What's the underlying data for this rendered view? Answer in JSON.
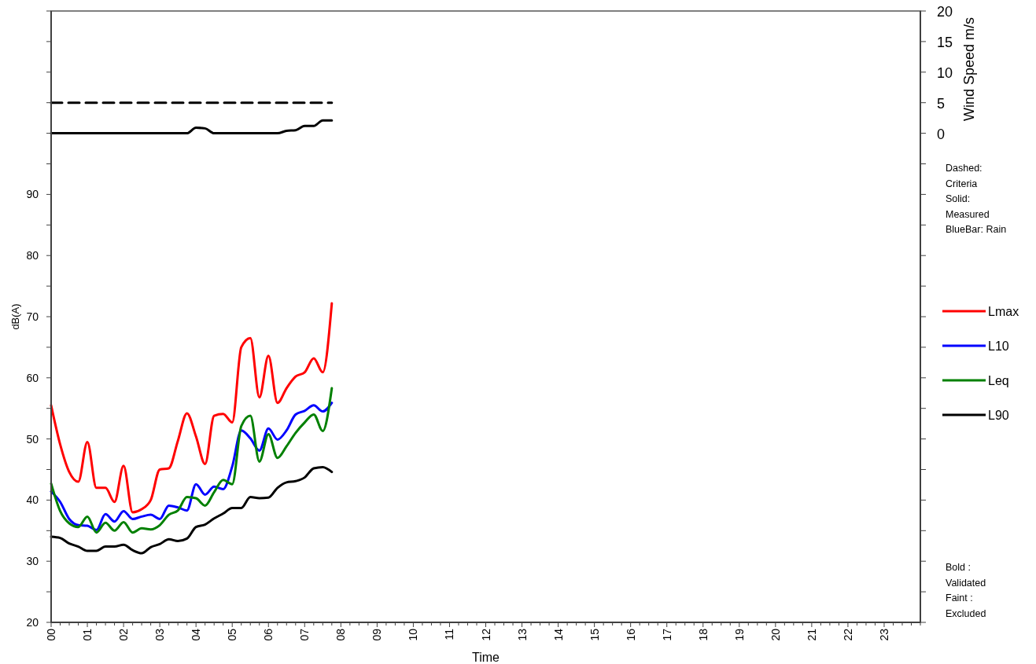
{
  "chart_data": {
    "type": "line",
    "xlabel": "Time",
    "ylabel": "dB(A)",
    "y2label": "Wind Speed m/s",
    "x": [
      0,
      0.25,
      0.5,
      0.75,
      1,
      1.25,
      1.5,
      1.75,
      2,
      2.25,
      2.5,
      2.75,
      3,
      3.25,
      3.5,
      3.75,
      4,
      4.25,
      4.5,
      4.75,
      5,
      5.25,
      5.5,
      5.75,
      6,
      6.25,
      6.5,
      6.75,
      7,
      7.25,
      7.5,
      7.75
    ],
    "xlim": [
      0,
      24
    ],
    "xticks": [
      {
        "value": 0,
        "label": "00"
      },
      {
        "value": 0.25,
        "label": null
      },
      {
        "value": 0.5,
        "label": null
      },
      {
        "value": 0.75,
        "label": null
      },
      {
        "value": 1,
        "label": "01"
      },
      {
        "value": 1.25,
        "label": null
      },
      {
        "value": 1.5,
        "label": null
      },
      {
        "value": 1.75,
        "label": null
      },
      {
        "value": 2,
        "label": "02"
      },
      {
        "value": 2.25,
        "label": null
      },
      {
        "value": 2.5,
        "label": null
      },
      {
        "value": 2.75,
        "label": null
      },
      {
        "value": 3,
        "label": "03"
      },
      {
        "value": 3.25,
        "label": null
      },
      {
        "value": 3.5,
        "label": null
      },
      {
        "value": 3.75,
        "label": null
      },
      {
        "value": 4,
        "label": "04"
      },
      {
        "value": 4.25,
        "label": null
      },
      {
        "value": 4.5,
        "label": null
      },
      {
        "value": 4.75,
        "label": null
      },
      {
        "value": 5,
        "label": "05"
      },
      {
        "value": 5.25,
        "label": null
      },
      {
        "value": 5.5,
        "label": null
      },
      {
        "value": 5.75,
        "label": null
      },
      {
        "value": 6,
        "label": "06"
      },
      {
        "value": 6.25,
        "label": null
      },
      {
        "value": 6.5,
        "label": null
      },
      {
        "value": 6.75,
        "label": null
      },
      {
        "value": 7,
        "label": "07"
      },
      {
        "value": 7.25,
        "label": null
      },
      {
        "value": 7.5,
        "label": null
      },
      {
        "value": 7.75,
        "label": null
      },
      {
        "value": 8,
        "label": "08"
      },
      {
        "value": 8.25,
        "label": null
      },
      {
        "value": 8.5,
        "label": null
      },
      {
        "value": 8.75,
        "label": null
      },
      {
        "value": 9,
        "label": "09"
      },
      {
        "value": 9.25,
        "label": null
      },
      {
        "value": 9.5,
        "label": null
      },
      {
        "value": 9.75,
        "label": null
      },
      {
        "value": 10,
        "label": "10"
      },
      {
        "value": 10.25,
        "label": null
      },
      {
        "value": 10.5,
        "label": null
      },
      {
        "value": 10.75,
        "label": null
      },
      {
        "value": 11,
        "label": "11"
      },
      {
        "value": 11.25,
        "label": null
      },
      {
        "value": 11.5,
        "label": null
      },
      {
        "value": 11.75,
        "label": null
      },
      {
        "value": 12,
        "label": "12"
      },
      {
        "value": 12.25,
        "label": null
      },
      {
        "value": 12.5,
        "label": null
      },
      {
        "value": 12.75,
        "label": null
      },
      {
        "value": 13,
        "label": "13"
      },
      {
        "value": 13.25,
        "label": null
      },
      {
        "value": 13.5,
        "label": null
      },
      {
        "value": 13.75,
        "label": null
      },
      {
        "value": 14,
        "label": "14"
      },
      {
        "value": 14.25,
        "label": null
      },
      {
        "value": 14.5,
        "label": null
      },
      {
        "value": 14.75,
        "label": null
      },
      {
        "value": 15,
        "label": "15"
      },
      {
        "value": 15.25,
        "label": null
      },
      {
        "value": 15.5,
        "label": null
      },
      {
        "value": 15.75,
        "label": null
      },
      {
        "value": 16,
        "label": "16"
      },
      {
        "value": 16.25,
        "label": null
      },
      {
        "value": 16.5,
        "label": null
      },
      {
        "value": 16.75,
        "label": null
      },
      {
        "value": 17,
        "label": "17"
      },
      {
        "value": 17.25,
        "label": null
      },
      {
        "value": 17.5,
        "label": null
      },
      {
        "value": 17.75,
        "label": null
      },
      {
        "value": 18,
        "label": "18"
      },
      {
        "value": 18.25,
        "label": null
      },
      {
        "value": 18.5,
        "label": null
      },
      {
        "value": 18.75,
        "label": null
      },
      {
        "value": 19,
        "label": "19"
      },
      {
        "value": 19.25,
        "label": null
      },
      {
        "value": 19.5,
        "label": null
      },
      {
        "value": 19.75,
        "label": null
      },
      {
        "value": 20,
        "label": "20"
      },
      {
        "value": 20.25,
        "label": null
      },
      {
        "value": 20.5,
        "label": null
      },
      {
        "value": 20.75,
        "label": null
      },
      {
        "value": 21,
        "label": "21"
      },
      {
        "value": 21.25,
        "label": null
      },
      {
        "value": 21.5,
        "label": null
      },
      {
        "value": 21.75,
        "label": null
      },
      {
        "value": 22,
        "label": "22"
      },
      {
        "value": 22.25,
        "label": null
      },
      {
        "value": 22.5,
        "label": null
      },
      {
        "value": 22.75,
        "label": null
      },
      {
        "value": 23,
        "label": "23"
      },
      {
        "value": 23.25,
        "label": null
      },
      {
        "value": 23.5,
        "label": null
      },
      {
        "value": 23.75,
        "label": null
      },
      {
        "value": 24,
        "label": null
      }
    ],
    "ylim": [
      20,
      120
    ],
    "yticks": [
      20,
      {
        "value": 25,
        "label": null
      },
      30,
      {
        "value": 35,
        "label": null
      },
      40,
      {
        "value": 45,
        "label": null
      },
      50,
      {
        "value": 55,
        "label": null
      },
      60,
      {
        "value": 65,
        "label": null
      },
      70,
      {
        "value": 75,
        "label": null
      },
      80,
      {
        "value": 85,
        "label": null
      },
      90,
      {
        "value": 95,
        "label": null
      },
      {
        "value": 100,
        "label": null
      },
      {
        "value": 105,
        "label": null
      },
      {
        "value": 110,
        "label": null
      },
      {
        "value": 115,
        "label": null
      },
      {
        "value": 120,
        "label": null
      }
    ],
    "y2lim": [
      -80,
      20
    ],
    "y2ticks": [
      {
        "value": -80,
        "label": null
      },
      {
        "value": -75,
        "label": null
      },
      {
        "value": -70,
        "label": null
      },
      {
        "value": -65,
        "label": null
      },
      {
        "value": -60,
        "label": null
      },
      {
        "value": -55,
        "label": null
      },
      {
        "value": -50,
        "label": null
      },
      {
        "value": -45,
        "label": null
      },
      {
        "value": -40,
        "label": null
      },
      {
        "value": -35,
        "label": null
      },
      {
        "value": -30,
        "label": null
      },
      {
        "value": -25,
        "label": null
      },
      {
        "value": -20,
        "label": null
      },
      {
        "value": -15,
        "label": null
      },
      {
        "value": -10,
        "label": null
      },
      {
        "value": -5,
        "label": null
      },
      0,
      5,
      10,
      15,
      20
    ],
    "grid": false,
    "legend": "right",
    "marker": "none",
    "series": [
      {
        "name": "Lmax",
        "color": "#ff0000",
        "line_style": "solid",
        "values": [
          55.5,
          49.1,
          44.6,
          43.0,
          49.5,
          42.0,
          42.0,
          39.7,
          45.6,
          38.0,
          38.5,
          40.0,
          45.0,
          45.2,
          49.7,
          54.2,
          50.4,
          45.9,
          53.8,
          54.1,
          52.7,
          65.0,
          66.5,
          56.8,
          63.6,
          55.9,
          58.3,
          60.2,
          60.9,
          63.2,
          60.9,
          72.2
        ]
      },
      {
        "name": "L10",
        "color": "#0000ff",
        "line_style": "solid",
        "values": [
          41.4,
          39.7,
          36.9,
          35.9,
          35.8,
          35.1,
          37.7,
          36.5,
          38.2,
          36.9,
          37.3,
          37.6,
          36.9,
          39.1,
          38.8,
          38.3,
          42.6,
          40.9,
          42.2,
          41.8,
          45.5,
          51.4,
          50.1,
          48.1,
          51.7,
          49.9,
          51.4,
          54.0,
          54.6,
          55.5,
          54.5,
          55.9
        ]
      },
      {
        "name": "Leq",
        "color": "#008000",
        "line_style": "solid",
        "values": [
          42.7,
          38.2,
          36.2,
          35.6,
          37.3,
          34.7,
          36.3,
          35.0,
          36.4,
          34.7,
          35.4,
          35.2,
          35.9,
          37.6,
          38.3,
          40.5,
          40.3,
          39.1,
          41.3,
          43.3,
          42.6,
          52.1,
          53.8,
          46.3,
          50.8,
          46.9,
          48.8,
          51.0,
          52.7,
          54.0,
          51.3,
          58.3
        ]
      },
      {
        "name": "L90",
        "color": "#000000",
        "line_style": "solid",
        "values": [
          34.0,
          33.8,
          32.9,
          32.4,
          31.7,
          31.7,
          32.4,
          32.4,
          32.7,
          31.8,
          31.3,
          32.3,
          32.8,
          33.6,
          33.3,
          33.7,
          35.6,
          36.0,
          37.0,
          37.8,
          38.7,
          38.7,
          40.5,
          40.3,
          40.4,
          42.0,
          42.9,
          43.1,
          43.7,
          45.2,
          45.4,
          44.6
        ]
      },
      {
        "color": "#000000",
        "axis": "y2",
        "line_style": "solid",
        "values": [
          0,
          0,
          0,
          0,
          0,
          0,
          0,
          0,
          0,
          0,
          0,
          0,
          0,
          0,
          0,
          0,
          0.9,
          0.8,
          0,
          0,
          0,
          0,
          0,
          0,
          0,
          0,
          0.4,
          0.5,
          1.2,
          1.2,
          2.1,
          2.1
        ]
      },
      {
        "color": "#000000",
        "axis": "y2",
        "line_style": "dashed",
        "values": [
          5,
          5,
          5,
          5,
          5,
          5,
          5,
          5,
          5,
          5,
          5,
          5,
          5,
          5,
          5,
          5,
          5,
          5,
          5,
          5,
          5,
          5,
          5,
          5,
          5,
          5,
          5,
          5,
          5,
          5,
          5,
          5
        ]
      }
    ],
    "annotations": [
      "Dashed: Criteria Solid: Measured BlueBar: Rain",
      "Bold : Validated Faint : Excluded"
    ]
  }
}
